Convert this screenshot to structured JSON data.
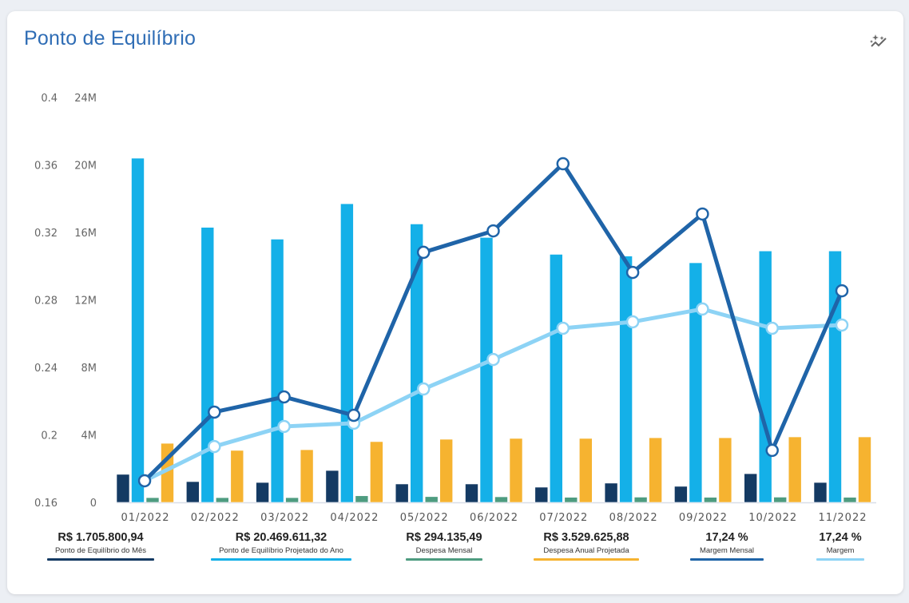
{
  "card": {
    "title": "Ponto de Equilíbrio",
    "insights_icon": "sparkle-chart-icon"
  },
  "colors": {
    "ponto_mes": "#143a63",
    "ponto_ano": "#14b0e8",
    "despesa_mensal": "#4e9c80",
    "despesa_anual": "#f6b330",
    "margem_mensal": "#1f64a8",
    "margem": "#8dd3f5",
    "title": "#2f6db5"
  },
  "summary": [
    {
      "value": "R$ 1.705.800,94",
      "label": "Ponto de Equilíbrio do Mês",
      "color": "#143a63"
    },
    {
      "value": "R$ 20.469.611,32",
      "label": "Ponto de Equilíbrio Projetado do Ano",
      "color": "#14b0e8"
    },
    {
      "value": "R$ 294.135,49",
      "label": "Despesa Mensal",
      "color": "#4e9c80"
    },
    {
      "value": "R$ 3.529.625,88",
      "label": "Despesa Anual Projetada",
      "color": "#f6b330"
    },
    {
      "value": "17,24 %",
      "label": "Margem Mensal",
      "color": "#1f64a8"
    },
    {
      "value": "17,24 %",
      "label": "Margem",
      "color": "#8dd3f5"
    }
  ],
  "chart_data": {
    "type": "bar",
    "title": "Ponto de Equilíbrio",
    "categories": [
      "01/2022",
      "02/2022",
      "03/2022",
      "04/2022",
      "05/2022",
      "06/2022",
      "07/2022",
      "08/2022",
      "09/2022",
      "10/2022",
      "11/2022"
    ],
    "y_left_ratio": {
      "ticks": [
        "0.16",
        "0.2",
        "0.24",
        "0.28",
        "0.32",
        "0.36",
        "0.4"
      ],
      "range": [
        0.16,
        0.4
      ]
    },
    "y_left_money": {
      "ticks": [
        "0",
        "4M",
        "8M",
        "12M",
        "16M",
        "20M",
        "24M"
      ],
      "range": [
        0,
        24000000
      ]
    },
    "grid": false,
    "legend": "bottom",
    "series": [
      {
        "name": "Ponto de Equilíbrio do Mês",
        "type": "bar",
        "axis": "money",
        "color": "#143a63",
        "values": [
          1660000,
          1230000,
          1180000,
          1890000,
          1090000,
          1090000,
          900000,
          1140000,
          950000,
          1700000,
          1180000
        ]
      },
      {
        "name": "Ponto de Equilíbrio Projetado do Ano",
        "type": "bar",
        "axis": "money",
        "color": "#14b0e8",
        "values": [
          20400000,
          16300000,
          15600000,
          17700000,
          16500000,
          15700000,
          14700000,
          14600000,
          14200000,
          14900000,
          14900000
        ]
      },
      {
        "name": "Despesa Mensal",
        "type": "bar",
        "axis": "money",
        "color": "#4e9c80",
        "values": [
          280000,
          280000,
          280000,
          390000,
          340000,
          330000,
          300000,
          310000,
          300000,
          310000,
          300000
        ]
      },
      {
        "name": "Despesa Anual Projetada",
        "type": "bar",
        "axis": "money",
        "color": "#f6b330",
        "values": [
          3500000,
          3080000,
          3120000,
          3600000,
          3740000,
          3790000,
          3790000,
          3830000,
          3830000,
          3880000,
          3880000
        ]
      },
      {
        "name": "Margem Mensal",
        "type": "line",
        "axis": "ratio",
        "color": "#1f64a8",
        "values": [
          0.1728,
          0.2135,
          0.2225,
          0.2116,
          0.3082,
          0.3209,
          0.3607,
          0.2963,
          0.3309,
          0.1908,
          0.2854
        ]
      },
      {
        "name": "Margem",
        "type": "line",
        "axis": "ratio",
        "color": "#8dd3f5",
        "values": [
          0.1728,
          0.1931,
          0.205,
          0.2069,
          0.2272,
          0.2447,
          0.2632,
          0.267,
          0.2746,
          0.2632,
          0.2651
        ]
      }
    ]
  }
}
